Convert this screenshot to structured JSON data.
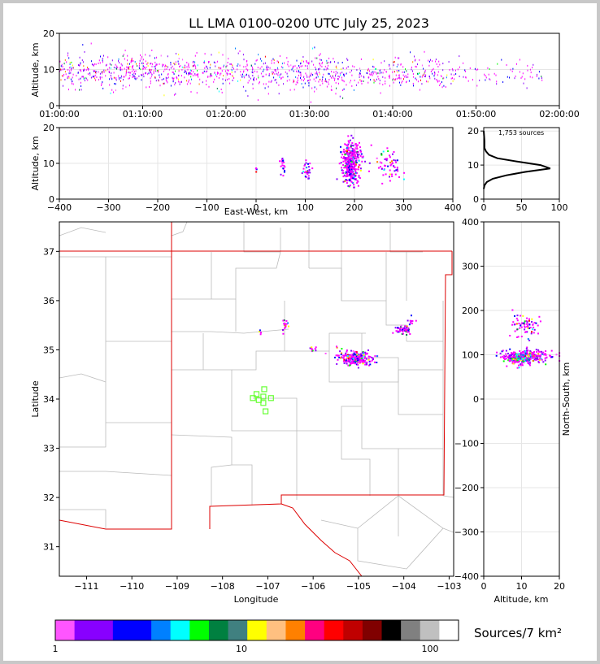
{
  "title": "LL LMA 0100-0200 UTC July 25, 2023",
  "chart_data": [
    {
      "name": "time-altitude",
      "type": "scatter",
      "ylabel": "Altitude, km",
      "xlabel": "",
      "x_ticks": [
        "01:00:00",
        "01:10:00",
        "01:20:00",
        "01:30:00",
        "01:40:00",
        "01:50:00",
        "02:00:00"
      ],
      "xlim_minutes": [
        0,
        60
      ],
      "ylim": [
        0,
        20
      ],
      "y_ticks": [
        0,
        10,
        20
      ],
      "grid": true,
      "density_bands": [
        {
          "t0": 0,
          "t1": 12,
          "alt": [
            6,
            14
          ],
          "density": 1.0
        },
        {
          "t0": 12,
          "t1": 33,
          "alt": [
            5,
            14
          ],
          "density": 0.9
        },
        {
          "t0": 33,
          "t1": 46,
          "alt": [
            5,
            13
          ],
          "density": 0.7
        },
        {
          "t0": 46,
          "t1": 58,
          "alt": [
            6,
            12
          ],
          "density": 0.25
        }
      ]
    },
    {
      "name": "ew-altitude",
      "type": "scatter",
      "xlabel": "East-West, km",
      "ylabel": "Altitude, km",
      "xlim": [
        -400,
        400
      ],
      "x_ticks": [
        -400,
        -300,
        -200,
        -100,
        0,
        100,
        200,
        300,
        400
      ],
      "ylim": [
        0,
        20
      ],
      "y_ticks": [
        0,
        10,
        20
      ],
      "grid": true,
      "clusters": [
        {
          "x": 192,
          "alt": 10,
          "sx": 10,
          "salt": 3,
          "n": 360
        },
        {
          "x": 268,
          "alt": 10,
          "sx": 14,
          "salt": 2.5,
          "n": 60
        },
        {
          "x": 102,
          "alt": 8.5,
          "sx": 4,
          "salt": 1.3,
          "n": 30
        },
        {
          "x": 52,
          "alt": 9.5,
          "sx": 3,
          "salt": 1.5,
          "n": 18
        },
        {
          "x": 0,
          "alt": 9,
          "sx": 2,
          "salt": 1,
          "n": 4
        }
      ]
    },
    {
      "name": "altitude-histogram",
      "type": "line",
      "annotation": "1,753 sources",
      "xlim": [
        0,
        100
      ],
      "x_ticks": [
        0,
        50,
        100
      ],
      "ylim": [
        0,
        21
      ],
      "y_ticks": [
        0,
        10,
        20
      ],
      "grid": true,
      "profile": [
        {
          "alt": 3,
          "count": 0
        },
        {
          "alt": 4,
          "count": 1
        },
        {
          "alt": 5,
          "count": 4
        },
        {
          "alt": 6,
          "count": 12
        },
        {
          "alt": 7,
          "count": 30
        },
        {
          "alt": 8,
          "count": 55
        },
        {
          "alt": 9,
          "count": 88
        },
        {
          "alt": 10,
          "count": 75
        },
        {
          "alt": 11,
          "count": 45
        },
        {
          "alt": 12,
          "count": 18
        },
        {
          "alt": 13,
          "count": 7
        },
        {
          "alt": 14,
          "count": 3
        },
        {
          "alt": 15,
          "count": 1
        },
        {
          "alt": 17,
          "count": 1
        },
        {
          "alt": 20,
          "count": 0
        }
      ]
    },
    {
      "name": "plan-view-map",
      "type": "scatter",
      "xlabel": "Longitude",
      "ylabel": "Latitude",
      "xlim": [
        -111.6,
        -102.9
      ],
      "ylim": [
        30.4,
        37.6
      ],
      "x_ticks": [
        -111,
        -110,
        -109,
        -108,
        -107,
        -106,
        -105,
        -104,
        -103
      ],
      "y_ticks": [
        31,
        32,
        33,
        34,
        35,
        36,
        37
      ],
      "clusters": [
        {
          "lon": -105.1,
          "lat": 34.85,
          "slon": 0.18,
          "slat": 0.07,
          "n": 260
        },
        {
          "lon": -104.05,
          "lat": 35.42,
          "slon": 0.08,
          "slat": 0.06,
          "n": 50
        },
        {
          "lon": -103.85,
          "lat": 35.6,
          "slon": 0.05,
          "slat": 0.05,
          "n": 10
        },
        {
          "lon": -106.63,
          "lat": 35.52,
          "slon": 0.03,
          "slat": 0.06,
          "n": 18
        },
        {
          "lon": -106.0,
          "lat": 35.02,
          "slon": 0.04,
          "slat": 0.03,
          "n": 10
        },
        {
          "lon": -107.2,
          "lat": 35.38,
          "slon": 0.02,
          "slat": 0.03,
          "n": 4
        }
      ],
      "stations": [
        {
          "lon": -107.08,
          "lat": 34.2
        },
        {
          "lon": -107.25,
          "lat": 34.1
        },
        {
          "lon": -107.33,
          "lat": 34.02
        },
        {
          "lon": -107.2,
          "lat": 33.98
        },
        {
          "lon": -107.1,
          "lat": 34.05
        },
        {
          "lon": -106.93,
          "lat": 34.02
        },
        {
          "lon": -107.1,
          "lat": 33.92
        },
        {
          "lon": -107.05,
          "lat": 33.75
        }
      ]
    },
    {
      "name": "altitude-ns",
      "type": "scatter",
      "xlabel": "Altitude, km",
      "ylabel": "North-South, km",
      "xlim": [
        0,
        20
      ],
      "x_ticks": [
        0,
        10,
        20
      ],
      "ylim": [
        -400,
        400
      ],
      "y_ticks": [
        -400,
        -300,
        -200,
        -100,
        0,
        100,
        200,
        300,
        400
      ],
      "grid": true,
      "clusters": [
        {
          "alt": 10,
          "y": 95,
          "salt": 2.6,
          "sy": 8,
          "n": 330
        },
        {
          "alt": 10.5,
          "y": 168,
          "salt": 1.8,
          "sy": 14,
          "n": 70
        },
        {
          "alt": 16,
          "y": 100,
          "salt": 2.5,
          "sy": 6,
          "n": 30
        }
      ]
    }
  ],
  "colorbar": {
    "label": "Sources/7 km²",
    "tick_labels": [
      "1",
      "10",
      "100"
    ],
    "colors": [
      "#ff55ff",
      "#8800ff",
      "#8800ff",
      "#0000ff",
      "#0000ff",
      "#0080ff",
      "#00ffff",
      "#00ff00",
      "#008040",
      "#408080",
      "#ffff00",
      "#ffc080",
      "#ff8000",
      "#ff0080",
      "#ff0000",
      "#c00000",
      "#800000",
      "#000000",
      "#808080",
      "#c0c0c0",
      "#ffffff"
    ]
  },
  "colors": {
    "state_border": "#dd0000",
    "county_lines": "#bbbbbb",
    "station": "#66ff33",
    "grid": "#e6e6e6"
  }
}
